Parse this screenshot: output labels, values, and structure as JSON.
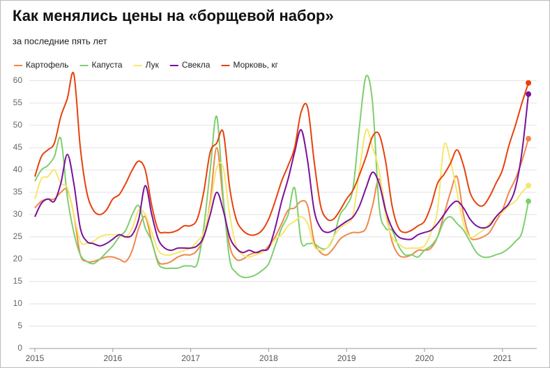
{
  "chart_data": {
    "type": "line",
    "title": "Как менялись цены на «борщевой набор»",
    "subtitle": "за последние пять лет",
    "categories": [
      "2015",
      null,
      null,
      null,
      null,
      null,
      null,
      null,
      null,
      null,
      null,
      null,
      "2016",
      null,
      null,
      null,
      null,
      null,
      null,
      null,
      null,
      null,
      null,
      null,
      "2017",
      null,
      null,
      null,
      null,
      null,
      null,
      null,
      null,
      null,
      null,
      null,
      "2018",
      null,
      null,
      null,
      null,
      null,
      null,
      null,
      null,
      null,
      null,
      null,
      "2019",
      null,
      null,
      null,
      null,
      null,
      null,
      null,
      null,
      null,
      null,
      null,
      "2020",
      null,
      null,
      null,
      null,
      null,
      null,
      null,
      null,
      null,
      null,
      null,
      "2021",
      null,
      null,
      null,
      null
    ],
    "series": [
      {
        "name": "Картофель",
        "color": "#f0874a",
        "values": [
          31.5,
          33,
          33.5,
          33.5,
          35,
          35.5,
          30,
          21,
          19.5,
          19.5,
          20,
          20.5,
          20.5,
          20,
          19.5,
          22,
          27,
          29.5,
          24,
          19.5,
          19,
          19.5,
          20.5,
          21,
          21,
          22,
          25,
          33,
          45,
          33,
          23,
          20,
          20,
          21,
          21.5,
          21.5,
          23,
          25,
          28,
          31,
          31.5,
          33,
          32,
          24,
          21.5,
          21,
          22.5,
          24.5,
          25.5,
          26,
          26,
          27,
          32,
          38,
          31,
          24,
          21,
          20.5,
          21,
          22,
          22,
          22.5,
          25,
          30,
          35,
          38.5,
          30,
          25,
          24.5,
          25,
          26,
          28.5,
          31,
          35,
          38,
          42,
          47
        ]
      },
      {
        "name": "Капуста",
        "color": "#7fce6e",
        "values": [
          37.5,
          40,
          41,
          43,
          47,
          34,
          26,
          21,
          19.5,
          19,
          20,
          21.5,
          23,
          25,
          26.5,
          30,
          32,
          27,
          24,
          19,
          18,
          18,
          18,
          18.5,
          18.5,
          19,
          27,
          40,
          52,
          34,
          20,
          17,
          16,
          16,
          16.5,
          17.5,
          19,
          23,
          27,
          30,
          36,
          24,
          23.5,
          23.5,
          22.5,
          22.5,
          25,
          30,
          32,
          36,
          50,
          61,
          55,
          32,
          27,
          26.5,
          23,
          21,
          21,
          20.5,
          22,
          23,
          25,
          28.5,
          29.5,
          28,
          26.5,
          24,
          21.5,
          20.5,
          20.5,
          21,
          21.5,
          22.5,
          24,
          26,
          33
        ]
      },
      {
        "name": "Лук",
        "color": "#f7e66a",
        "values": [
          33.5,
          38,
          38.5,
          40,
          37,
          36,
          30,
          24,
          23.5,
          24,
          25,
          25.5,
          25.5,
          25.5,
          25,
          27,
          31,
          30,
          26,
          22,
          21,
          21,
          21.5,
          22,
          22.5,
          24,
          26,
          32,
          40.5,
          40.5,
          30,
          23,
          21,
          20.5,
          21,
          21.5,
          22.5,
          24.5,
          25.5,
          27.5,
          28.5,
          29.5,
          28,
          23,
          22,
          22.5,
          25,
          27,
          28,
          30,
          40,
          49,
          45,
          40,
          30,
          25,
          23.5,
          22.5,
          22.5,
          22.5,
          23,
          26,
          31,
          45.5,
          42,
          35,
          28,
          25,
          25.5,
          26.5,
          28,
          29.5,
          30.5,
          32,
          33,
          35,
          36.5
        ]
      },
      {
        "name": "Свекла",
        "color": "#7a109a",
        "values": [
          29.5,
          32.5,
          33.5,
          33,
          37,
          43.5,
          37,
          27,
          24,
          23.5,
          23,
          23.5,
          24.5,
          25.5,
          25,
          25.5,
          29,
          36.5,
          30,
          24.5,
          22.5,
          22,
          22.5,
          22.5,
          22.5,
          23,
          25,
          30,
          35,
          31,
          25,
          22.5,
          21.5,
          22,
          21.5,
          22,
          22.5,
          27,
          33,
          38,
          44,
          49,
          42,
          31,
          27,
          26,
          26.5,
          27.5,
          28.5,
          29.5,
          32,
          36,
          39.5,
          37,
          31,
          27,
          25,
          24.5,
          24.5,
          25.5,
          26,
          26.5,
          28,
          30,
          32,
          33,
          31.5,
          29,
          27.5,
          27,
          27.5,
          29.5,
          31,
          32.5,
          36,
          44,
          57
        ]
      },
      {
        "name": "Морковь, кг",
        "color": "#e8400c",
        "values": [
          38.5,
          43,
          44.5,
          46,
          52,
          56,
          61.5,
          45,
          35,
          31,
          30,
          31,
          33.5,
          34.5,
          37,
          40,
          42,
          40,
          32,
          26.5,
          26,
          26,
          26.5,
          27.5,
          27.5,
          29,
          35,
          44,
          46,
          48.5,
          36,
          29,
          26.5,
          25.5,
          25.5,
          26.5,
          29,
          33,
          37.5,
          41,
          45,
          53,
          54,
          42,
          32,
          29,
          29,
          31,
          33.5,
          35.5,
          39,
          43,
          47.5,
          48,
          42,
          32,
          27,
          26,
          26.5,
          27.5,
          28.5,
          32,
          37,
          39,
          41.5,
          44.5,
          41,
          35,
          32.5,
          32,
          34,
          37,
          40,
          45.5,
          50,
          55,
          59.5
        ]
      }
    ],
    "ylim": [
      0,
      62
    ],
    "yticks": [
      0,
      5,
      10,
      15,
      20,
      25,
      30,
      35,
      40,
      45,
      50,
      55,
      60
    ],
    "grid": true,
    "legend": "top"
  }
}
